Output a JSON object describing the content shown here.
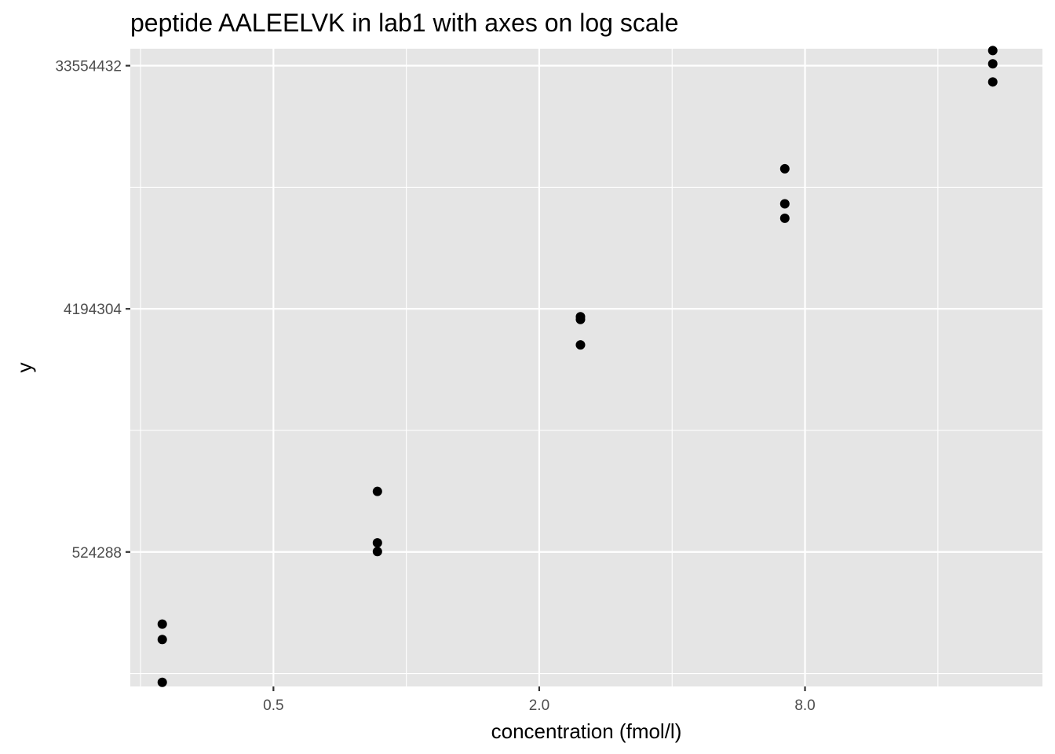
{
  "chart_data": {
    "type": "scatter",
    "title": "peptide AALEELVK in lab1 with axes on log scale",
    "xlabel": "concentration (fmol/l)",
    "ylabel": "y",
    "x_scale": "log",
    "y_scale": "log",
    "xlim": [
      0.237,
      27.6
    ],
    "ylim": [
      166000,
      38800000
    ],
    "x_ticks": [
      0.5,
      2.0,
      8.0
    ],
    "x_tick_labels": [
      "0.5",
      "2.0",
      "8.0"
    ],
    "y_ticks": [
      524288,
      4194304,
      33554432
    ],
    "y_tick_labels": [
      "524288",
      "4194304",
      "33554432"
    ],
    "grid": true,
    "legend": "none",
    "points": [
      {
        "x": 0.28,
        "y": 283000
      },
      {
        "x": 0.28,
        "y": 248000
      },
      {
        "x": 0.28,
        "y": 172000
      },
      {
        "x": 0.86,
        "y": 880000
      },
      {
        "x": 0.86,
        "y": 567000
      },
      {
        "x": 0.86,
        "y": 526000
      },
      {
        "x": 2.48,
        "y": 3920000
      },
      {
        "x": 2.48,
        "y": 3830000
      },
      {
        "x": 2.48,
        "y": 3080000
      },
      {
        "x": 7.2,
        "y": 13900000
      },
      {
        "x": 7.2,
        "y": 10300000
      },
      {
        "x": 7.2,
        "y": 9100000
      },
      {
        "x": 21.3,
        "y": 38200000
      },
      {
        "x": 21.3,
        "y": 34100000
      },
      {
        "x": 21.3,
        "y": 29200000
      }
    ],
    "point_color": "#000000"
  }
}
